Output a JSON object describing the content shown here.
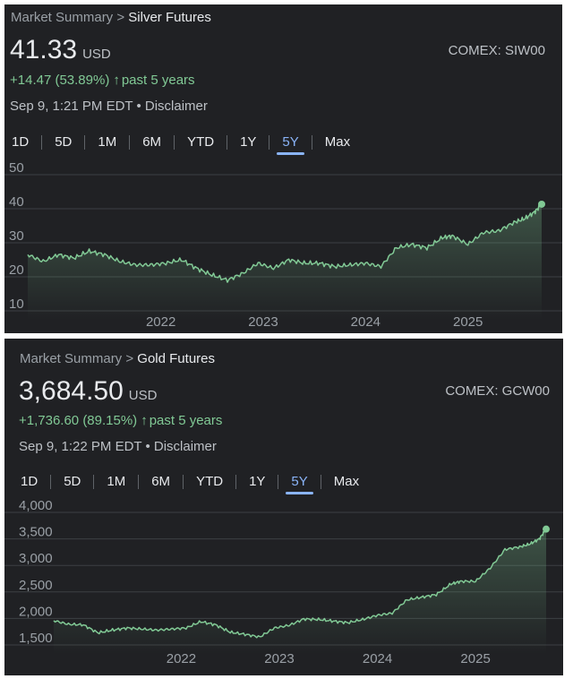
{
  "panels": [
    {
      "breadcrumb": {
        "root": "Market Summary",
        "sep": ">",
        "current": "Silver Futures"
      },
      "price": "41.33",
      "currency": "USD",
      "exchange": "COMEX: SIW00",
      "change": {
        "text": "+14.47 (53.89%)",
        "arrow": "↑",
        "period": "past 5 years"
      },
      "timestamp": "Sep 9, 1:21 PM EDT • Disclaimer",
      "ranges": [
        "1D",
        "5D",
        "1M",
        "6M",
        "YTD",
        "1Y",
        "5Y",
        "Max"
      ],
      "active_range": "5Y"
    },
    {
      "breadcrumb": {
        "root": "Market Summary",
        "sep": ">",
        "current": "Gold Futures"
      },
      "price": "3,684.50",
      "currency": "USD",
      "exchange": "COMEX: GCW00",
      "change": {
        "text": "+1,736.60 (89.15%)",
        "arrow": "↑",
        "period": "past 5 years"
      },
      "timestamp": "Sep 9, 1:22 PM EDT • Disclaimer",
      "ranges": [
        "1D",
        "5D",
        "1M",
        "6M",
        "YTD",
        "1Y",
        "5Y",
        "Max"
      ],
      "active_range": "5Y"
    }
  ],
  "colors": {
    "background": "#202124",
    "line": "#81c995",
    "grid": "#3c4043",
    "active": "#8ab4f8",
    "text": "#e8eaed",
    "muted": "#9aa0a6"
  },
  "chart_data": [
    {
      "type": "area",
      "title": "Silver Futures",
      "y_ticks": [
        "50",
        "40",
        "30",
        "20",
        "10"
      ],
      "x_ticks": [
        "2022",
        "2023",
        "2024",
        "2025"
      ],
      "ylim": [
        10,
        50
      ],
      "xlim": [
        2020.7,
        2025.72
      ],
      "grid": true,
      "series": [
        {
          "x": [
            2020.7,
            2020.85,
            2021.0,
            2021.15,
            2021.3,
            2021.45,
            2021.6,
            2021.75,
            2021.9,
            2022.05,
            2022.2,
            2022.35,
            2022.5,
            2022.65,
            2022.8,
            2022.95,
            2023.1,
            2023.25,
            2023.4,
            2023.55,
            2023.7,
            2023.85,
            2024.0,
            2024.15,
            2024.3,
            2024.45,
            2024.6,
            2024.75,
            2024.85,
            2025.0,
            2025.15,
            2025.3,
            2025.45,
            2025.55,
            2025.65,
            2025.72
          ],
          "y": [
            26.5,
            24.5,
            26.5,
            25.5,
            27.5,
            26.5,
            24.5,
            23.5,
            23.5,
            24.0,
            25.0,
            22.5,
            20.5,
            19.0,
            21.0,
            24.0,
            22.5,
            25.0,
            24.0,
            24.0,
            23.0,
            23.5,
            24.0,
            23.0,
            28.5,
            29.5,
            28.5,
            31.5,
            32.0,
            29.5,
            33.0,
            33.5,
            36.0,
            37.0,
            39.0,
            41.33
          ]
        }
      ]
    },
    {
      "type": "area",
      "title": "Gold Futures",
      "y_ticks": [
        "4,000",
        "3,500",
        "3,000",
        "2,500",
        "2,000",
        "1,500"
      ],
      "x_ticks": [
        "2022",
        "2023",
        "2024",
        "2025"
      ],
      "ylim": [
        1500,
        4000
      ],
      "xlim": [
        2020.7,
        2025.72
      ],
      "grid": true,
      "series": [
        {
          "x": [
            2020.7,
            2020.85,
            2021.0,
            2021.15,
            2021.3,
            2021.45,
            2021.6,
            2021.75,
            2021.9,
            2022.05,
            2022.2,
            2022.35,
            2022.5,
            2022.65,
            2022.8,
            2022.95,
            2023.1,
            2023.25,
            2023.4,
            2023.55,
            2023.7,
            2023.85,
            2024.0,
            2024.15,
            2024.3,
            2024.45,
            2024.6,
            2024.75,
            2024.85,
            2025.0,
            2025.15,
            2025.3,
            2025.45,
            2025.55,
            2025.65,
            2025.72
          ],
          "y": [
            1960,
            1890,
            1880,
            1730,
            1780,
            1820,
            1800,
            1780,
            1800,
            1820,
            1940,
            1880,
            1740,
            1700,
            1650,
            1820,
            1870,
            1990,
            1980,
            1950,
            1920,
            1980,
            2060,
            2100,
            2350,
            2400,
            2450,
            2650,
            2700,
            2700,
            2950,
            3300,
            3350,
            3400,
            3500,
            3684.5
          ]
        }
      ]
    }
  ]
}
